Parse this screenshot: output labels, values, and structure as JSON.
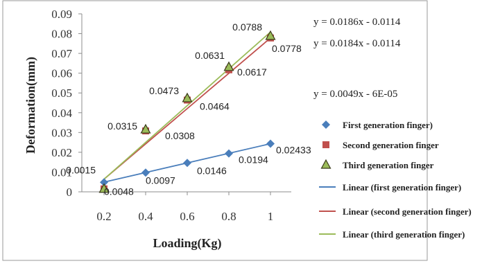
{
  "chart_data": {
    "type": "scatter",
    "x": [
      0.2,
      0.4,
      0.6,
      0.8,
      1
    ],
    "xlabel": "Loading(Kg)",
    "ylabel": "Deformation(mm)",
    "ylim": [
      0,
      0.09
    ],
    "yticks": [
      "0",
      "0.01",
      "0.02",
      "0.03",
      "0.04",
      "0.05",
      "0.06",
      "0.07",
      "0.08",
      "0.09"
    ],
    "xticks": [
      "0.2",
      "0.4",
      "0.6",
      "0.8",
      "1"
    ],
    "grid": false,
    "legend_position": "right",
    "series": [
      {
        "name": "First generation finger)",
        "values": [
          0.0048,
          0.0097,
          0.0146,
          0.0194,
          0.02433
        ],
        "labels": [
          "0.0048",
          "0.0097",
          "0.0146",
          "0.0194",
          "0.02433"
        ],
        "marker": "diamond",
        "color": "#4a7ebb"
      },
      {
        "name": "Second generation finger",
        "values": [
          0.0015,
          0.0308,
          0.0464,
          0.0617,
          0.0778
        ],
        "labels": [
          "0.0015",
          "0.0308",
          "0.0464",
          "0.0617",
          "0.0778"
        ],
        "marker": "square",
        "color": "#c0504d"
      },
      {
        "name": "Third generation finger",
        "values": [
          0.0015,
          0.0315,
          0.0473,
          0.0631,
          0.0788
        ],
        "labels": [
          "",
          "0.0315",
          "0.0473",
          "0.0631",
          "0.0788"
        ],
        "marker": "triangle",
        "color": "#9bbb59"
      }
    ],
    "trendlines": [
      {
        "name": "Linear (first generation finger)",
        "slope": 0.0186,
        "intercept": -0.0114,
        "color": "#4a7ebb",
        "fit_values": [
          0.0049,
          0.02433
        ]
      },
      {
        "name": "Linear (second generation finger)",
        "slope": 0.0184,
        "intercept": -0.0114,
        "color": "#c0504d",
        "fit_values": [
          0.0064,
          0.0778
        ]
      },
      {
        "name": "Linear (third generation finger)",
        "slope": 0.0186,
        "intercept": -0.0114,
        "color": "#9bbb59",
        "fit_values": [
          0.0064,
          0.0808
        ]
      }
    ],
    "equations": [
      "y = 0.0186x - 0.0114",
      "y = 0.0184x - 0.0114",
      "y = 0.0049x - 6E-05"
    ]
  }
}
